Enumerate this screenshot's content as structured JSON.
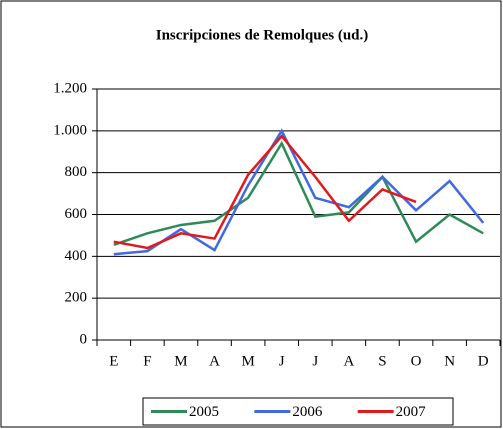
{
  "chart_data": {
    "type": "line",
    "title": "Inscripciones de Remolques (ud.)",
    "categories": [
      "E",
      "F",
      "M",
      "A",
      "M",
      "J",
      "J",
      "A",
      "S",
      "O",
      "N",
      "D"
    ],
    "series": [
      {
        "name": "2005",
        "color": "#2e8b57",
        "values": [
          455,
          510,
          550,
          570,
          680,
          940,
          590,
          610,
          780,
          470,
          600,
          510
        ]
      },
      {
        "name": "2006",
        "color": "#4169e1",
        "values": [
          410,
          425,
          530,
          430,
          740,
          1000,
          680,
          635,
          780,
          620,
          760,
          560
        ]
      },
      {
        "name": "2007",
        "color": "#e31a1c",
        "values": [
          470,
          440,
          510,
          485,
          790,
          975,
          780,
          570,
          720,
          660,
          null,
          null
        ]
      }
    ],
    "ylim": [
      0,
      1200
    ],
    "yticks": [
      0,
      200,
      400,
      600,
      800,
      {
        "value": 1000,
        "label": "1.000"
      },
      {
        "value": 1200,
        "label": "1.200"
      }
    ],
    "grid": true,
    "legend": "bottom"
  }
}
